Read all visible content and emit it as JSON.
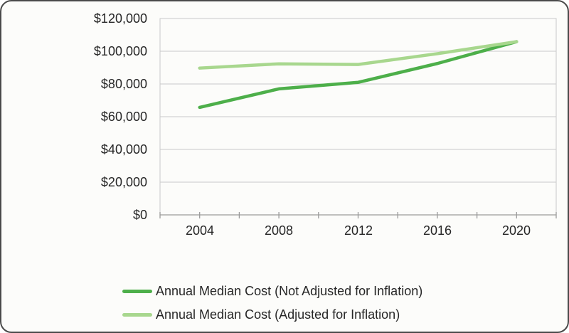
{
  "card": {
    "background_color": "#fcfcfa",
    "border_color": "#4a4a4a"
  },
  "chart_data": {
    "type": "line",
    "title": "",
    "xlabel": "",
    "ylabel": "",
    "grid": "horizontal",
    "legend_position": "bottom",
    "x": [
      2004,
      2008,
      2012,
      2016,
      2020
    ],
    "x_axis": {
      "range": [
        2002,
        2022
      ],
      "tick_step": 2,
      "label_step": 4,
      "tick_labels": [
        "2004",
        "2008",
        "2012",
        "2016",
        "2020"
      ]
    },
    "y_axis": {
      "range": [
        0,
        120000
      ],
      "tick_step": 20000,
      "tick_labels_top_to_bottom": [
        "$120,000",
        "$100,000",
        "$80,000",
        "$60,000",
        "$40,000",
        "$20,000",
        "$0"
      ]
    },
    "series": [
      {
        "name": "Annual Median Cost (Not Adjusted for Inflation)",
        "color": "#4daf4a",
        "values": [
          65700,
          77000,
          81000,
          92500,
          105850
        ]
      },
      {
        "name": "Annual Median Cost (Adjusted for Inflation)",
        "color": "#a8d78e",
        "values": [
          89700,
          92300,
          91900,
          98500,
          105850
        ]
      }
    ],
    "colors": {
      "frame": "#c9c9c9",
      "grid": "#c9c9c9",
      "axis": "#9b9b9b",
      "text": "#262626"
    }
  }
}
